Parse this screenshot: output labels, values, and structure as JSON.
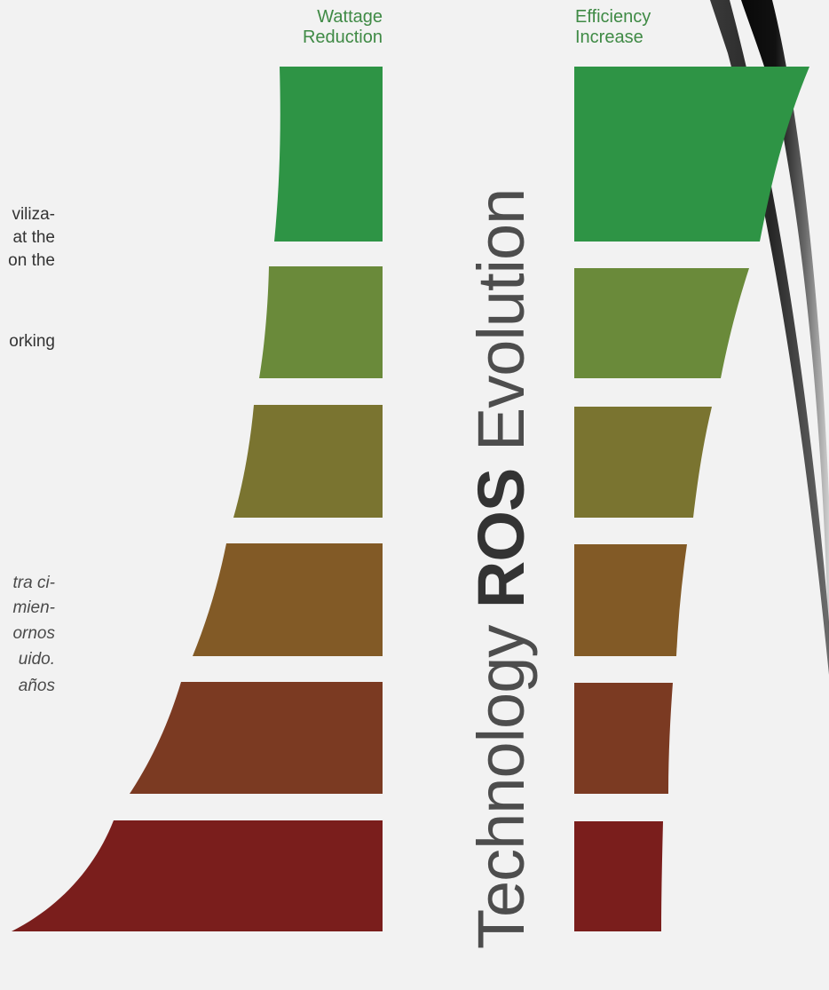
{
  "left_text": {
    "fragments": [
      {
        "text": "viliza-",
        "style": "normal"
      },
      {
        "text": "at the",
        "style": "normal"
      },
      {
        "text": "on the",
        "style": "normal"
      },
      {
        "text": "orking",
        "style": "normal"
      },
      {
        "text": "tra ci-",
        "style": "italic"
      },
      {
        "text": "mien-",
        "style": "italic"
      },
      {
        "text": "ornos",
        "style": "italic"
      },
      {
        "text": "uido.",
        "style": "italic"
      },
      {
        "text": "años",
        "style": "italic"
      }
    ]
  },
  "columns": {
    "left_header": "Wattage\nReduction",
    "right_header": "Efficiency\nIncrease"
  },
  "title": {
    "part1": "Technology ",
    "part2": "ROS",
    "part3": " Evolution"
  },
  "colors": {
    "level_colors": [
      "#2e9445",
      "#6a8a3a",
      "#7a7430",
      "#825a26",
      "#7b3a22",
      "#7a1e1c"
    ],
    "header_green": "#3f8a45",
    "arc": "#000000"
  }
}
